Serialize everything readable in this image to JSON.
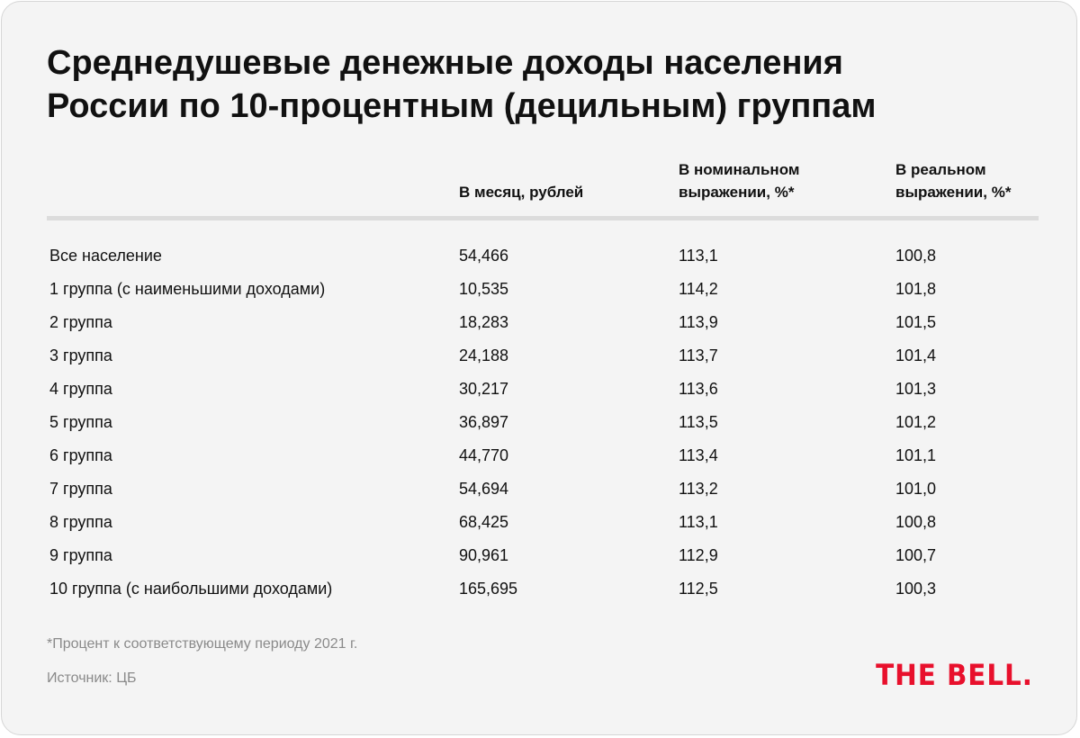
{
  "title": {
    "line1": "Среднедушевые денежные доходы населения",
    "line2": "России по 10-процентным (децильным) группам"
  },
  "table": {
    "columns": {
      "monthly": "В месяц, рублей",
      "nominal_line1": "В номинальном",
      "nominal_line2": "выражении, %*",
      "real_line1": "В реальном",
      "real_line2": "выражении, %*"
    },
    "rows": [
      {
        "label": "Все население",
        "monthly": "54,466",
        "nominal": "113,1",
        "real": "100,8"
      },
      {
        "label": "1 группа (с наименьшими доходами)",
        "monthly": "10,535",
        "nominal": "114,2",
        "real": "101,8"
      },
      {
        "label": "2 группа",
        "monthly": "18,283",
        "nominal": "113,9",
        "real": "101,5"
      },
      {
        "label": "3 группа",
        "monthly": "24,188",
        "nominal": "113,7",
        "real": "101,4"
      },
      {
        "label": "4 группа",
        "monthly": "30,217",
        "nominal": "113,6",
        "real": "101,3"
      },
      {
        "label": "5 группа",
        "monthly": "36,897",
        "nominal": "113,5",
        "real": "101,2"
      },
      {
        "label": "6 группа",
        "monthly": "44,770",
        "nominal": "113,4",
        "real": "101,1"
      },
      {
        "label": "7 группа",
        "monthly": "54,694",
        "nominal": "113,2",
        "real": "101,0"
      },
      {
        "label": "8 группа",
        "monthly": "68,425",
        "nominal": "113,1",
        "real": "100,8"
      },
      {
        "label": "9 группа",
        "monthly": "90,961",
        "nominal": "112,9",
        "real": "100,7"
      },
      {
        "label": "10 группа (с наибольшими доходами)",
        "monthly": "165,695",
        "nominal": "112,5",
        "real": "100,3"
      }
    ]
  },
  "footnote": "*Процент к соответствующему периоду 2021 г.",
  "source": "Источник: ЦБ",
  "logo": "THE BELL.",
  "colors": {
    "background": "#f4f4f4",
    "text": "#111111",
    "muted_text": "#8a8a8a",
    "brand_red": "#e8102c"
  }
}
